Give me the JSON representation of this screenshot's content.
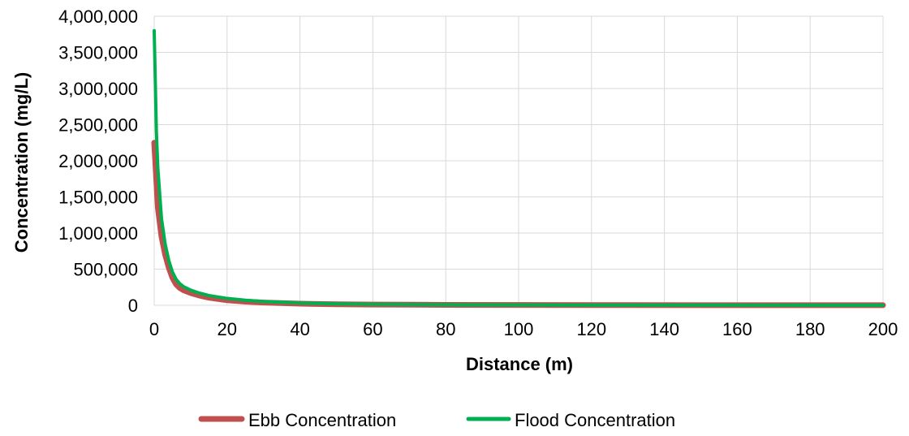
{
  "chart_data": {
    "type": "line",
    "title": "",
    "xlabel": "Distance (m)",
    "ylabel": "Concentration (mg/L)",
    "xlim": [
      0,
      200
    ],
    "ylim": [
      0,
      4000000
    ],
    "x_ticks": [
      0,
      20,
      40,
      60,
      80,
      100,
      120,
      140,
      160,
      180,
      200
    ],
    "y_ticks": [
      0,
      500000,
      1000000,
      1500000,
      2000000,
      2500000,
      3000000,
      3500000,
      4000000
    ],
    "x_tick_labels": [
      "0",
      "20",
      "40",
      "60",
      "80",
      "100",
      "120",
      "140",
      "160",
      "180",
      "200"
    ],
    "y_tick_labels": [
      "0",
      "500,000",
      "1,000,000",
      "1,500,000",
      "2,000,000",
      "2,500,000",
      "3,000,000",
      "3,500,000",
      "4,000,000"
    ],
    "grid": true,
    "legend_position": "bottom",
    "series": [
      {
        "name": "Ebb Concentration",
        "color": "#C0504D",
        "x": [
          0,
          0.5,
          1,
          2,
          3,
          4,
          5,
          6,
          7,
          8,
          10,
          12,
          15,
          20,
          25,
          30,
          40,
          50,
          60,
          80,
          100,
          120,
          150,
          200
        ],
        "y": [
          2250000,
          1800000,
          1350000,
          950000,
          700000,
          520000,
          380000,
          290000,
          240000,
          210000,
          170000,
          140000,
          105000,
          70000,
          50000,
          38000,
          22000,
          14000,
          10000,
          6000,
          4000,
          3000,
          2000,
          1000
        ]
      },
      {
        "name": "Flood Concentration",
        "color": "#00B050",
        "x": [
          0,
          0.3,
          0.6,
          1,
          2,
          3,
          4,
          5,
          6,
          7,
          8,
          10,
          12,
          15,
          20,
          25,
          30,
          40,
          50,
          60,
          80,
          100,
          120,
          150,
          200
        ],
        "y": [
          3800000,
          3100000,
          2400000,
          1900000,
          1200000,
          850000,
          620000,
          460000,
          360000,
          300000,
          260000,
          210000,
          175000,
          135000,
          95000,
          70000,
          52000,
          32000,
          20000,
          14000,
          8000,
          5000,
          3500,
          2500,
          1500
        ]
      }
    ]
  }
}
